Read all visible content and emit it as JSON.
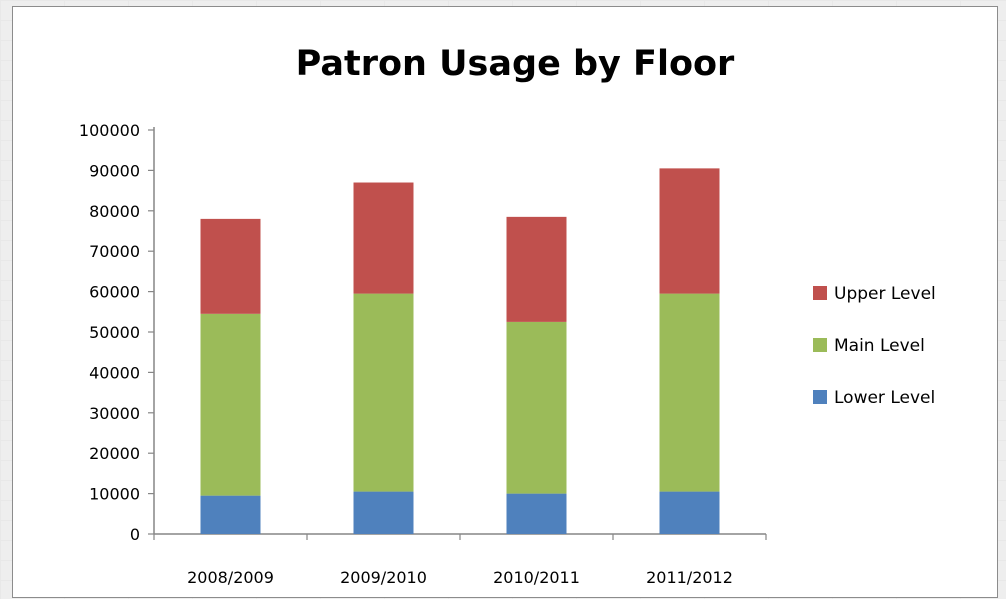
{
  "chart_data": {
    "type": "bar",
    "stacked": true,
    "title": "Patron Usage by Floor",
    "xlabel": "",
    "ylabel": "",
    "categories": [
      "2008/2009",
      "2009/2010",
      "2010/2011",
      "2011/2012"
    ],
    "series": [
      {
        "name": "Lower Level",
        "color": "#4f81bd",
        "values": [
          9500,
          10500,
          10000,
          10500
        ]
      },
      {
        "name": "Main Level",
        "color": "#9bbb59",
        "values": [
          45000,
          49000,
          42500,
          49000
        ]
      },
      {
        "name": "Upper Level",
        "color": "#c0504d",
        "values": [
          23500,
          27500,
          26000,
          31000
        ]
      }
    ],
    "ylim": [
      0,
      100000
    ],
    "yticks": [
      "100000",
      "90000",
      "80000",
      "70000",
      "60000",
      "50000",
      "40000",
      "30000",
      "20000",
      "10000",
      "0"
    ],
    "grid": false,
    "legend_position": "right",
    "legend_order": [
      "Upper Level",
      "Main Level",
      "Lower Level"
    ]
  }
}
